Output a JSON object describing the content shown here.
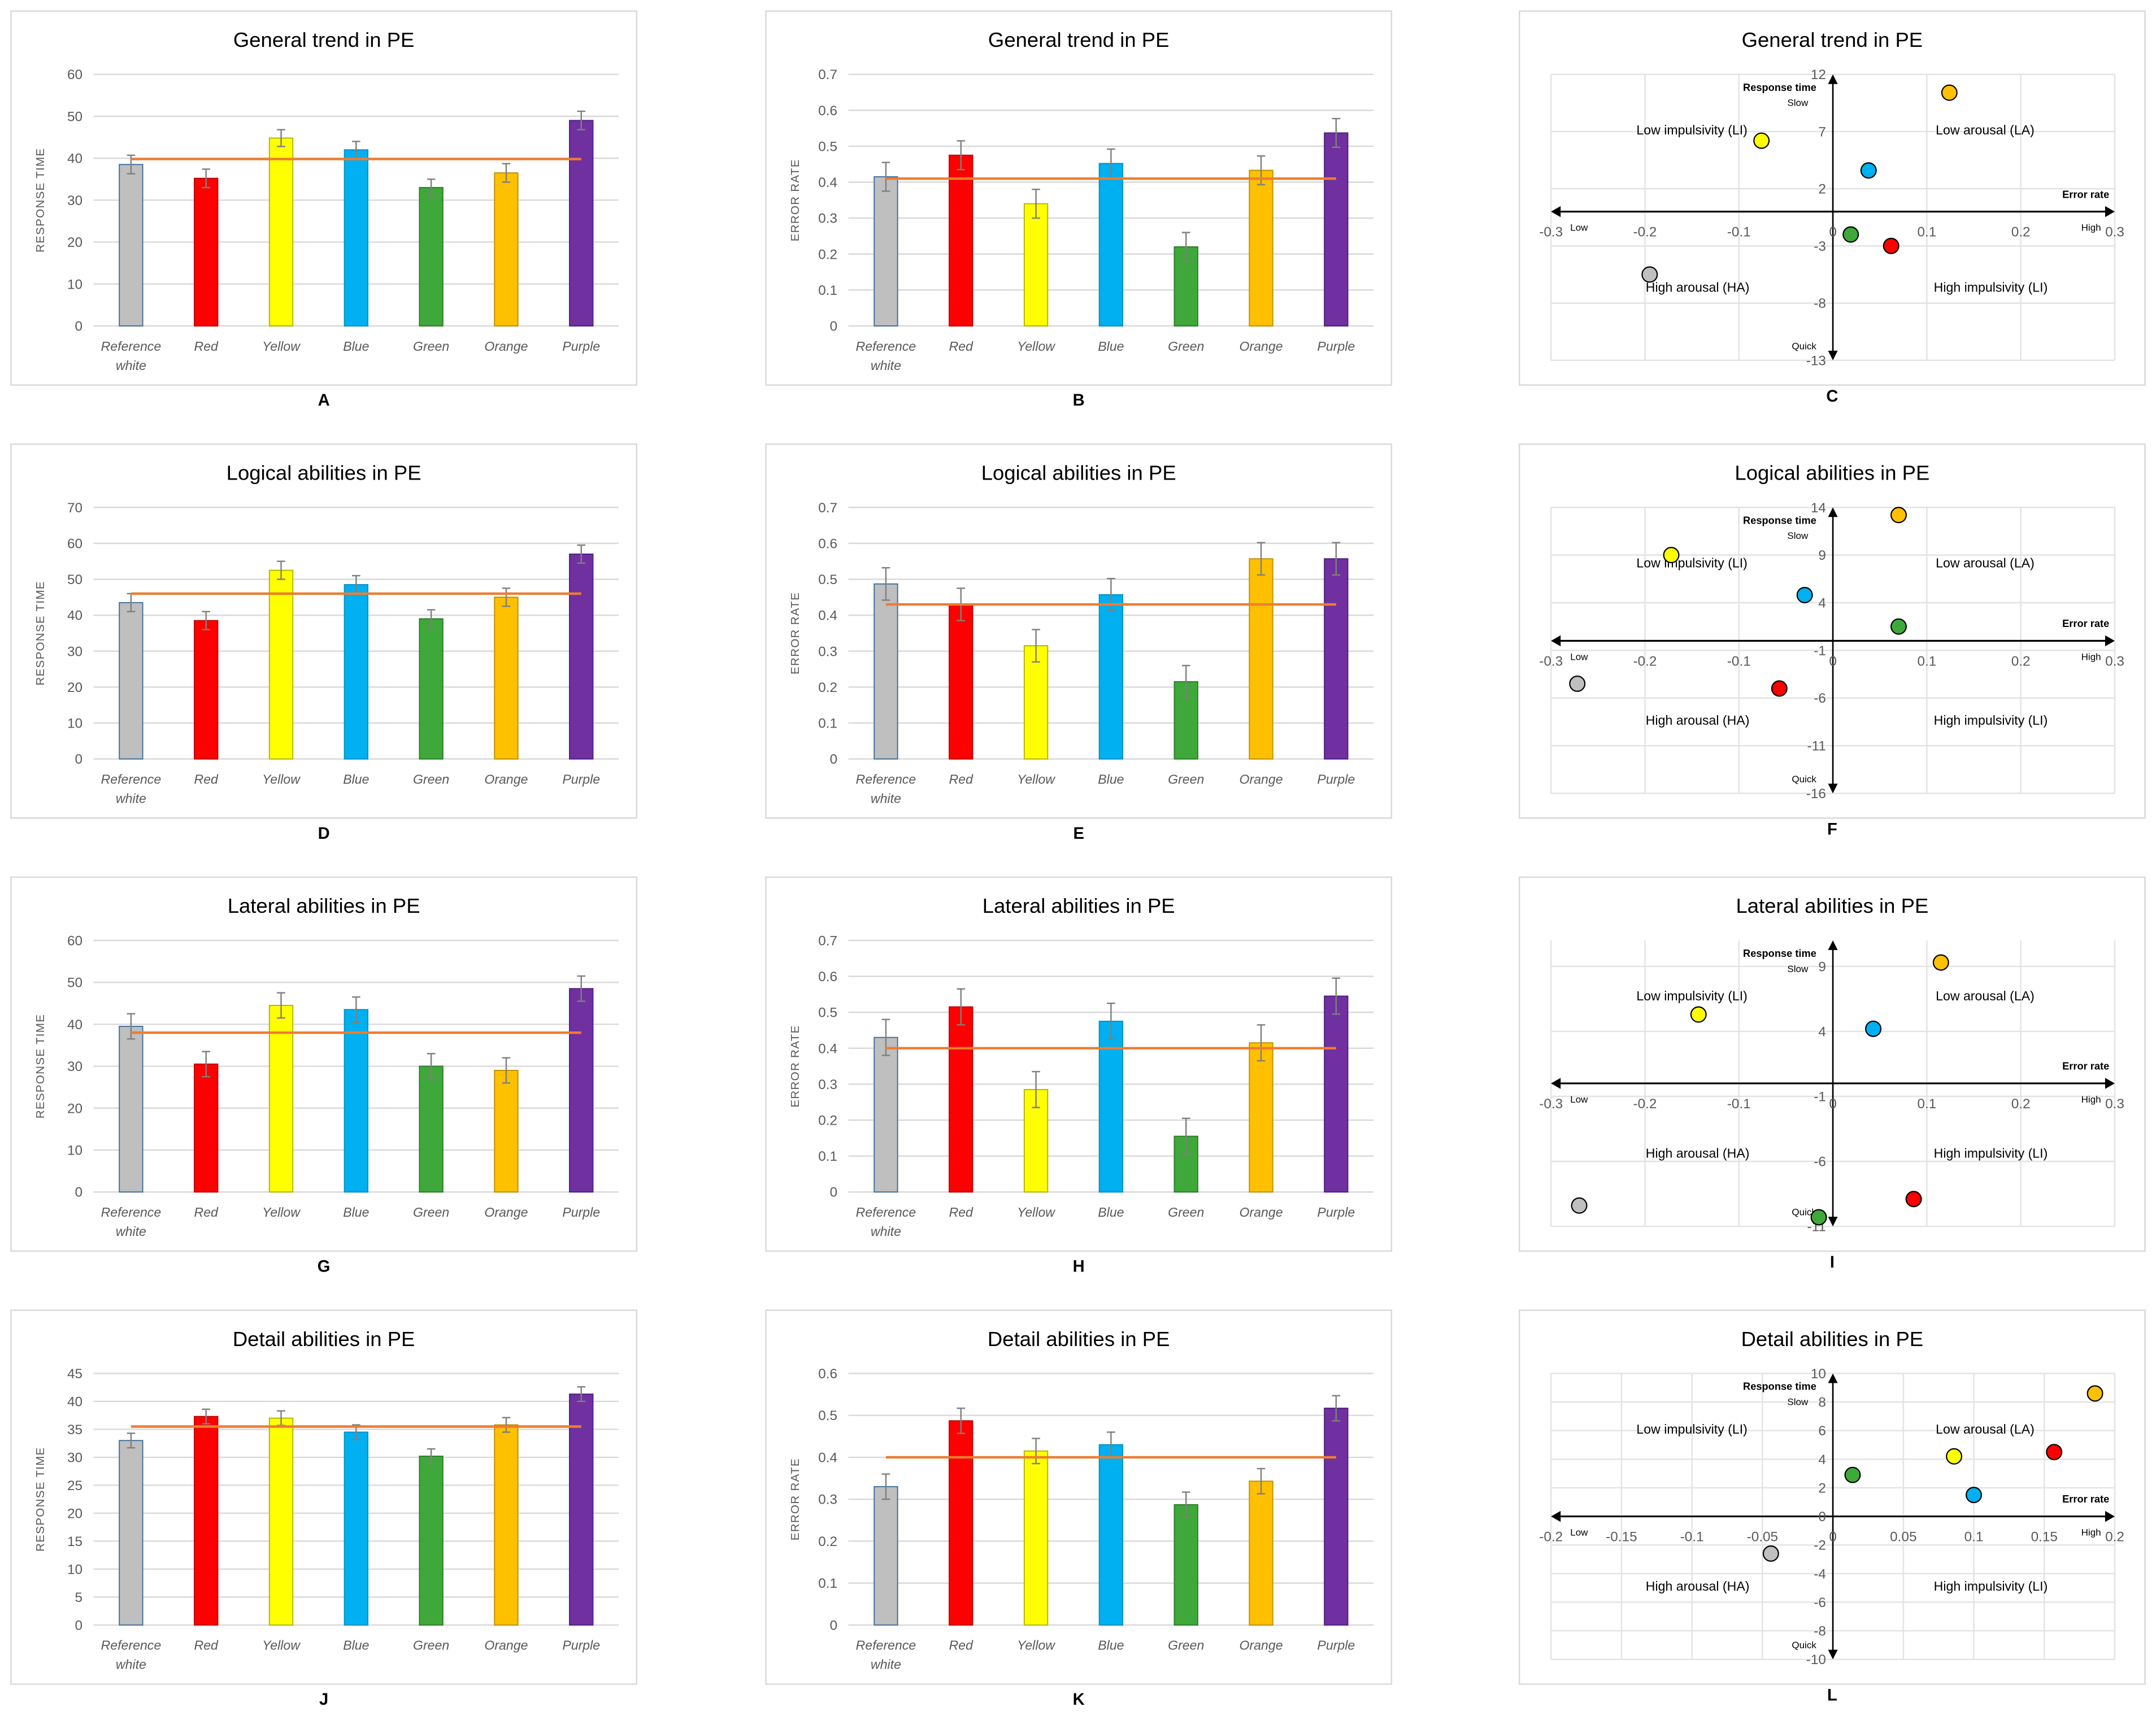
{
  "categories": [
    [
      "Reference",
      "white"
    ],
    [
      "Red"
    ],
    [
      "Yellow"
    ],
    [
      "Blue"
    ],
    [
      "Green"
    ],
    [
      "Orange"
    ],
    [
      "Purple"
    ]
  ],
  "colors": [
    "#bfbfbf",
    "#ff0000",
    "#ffff00",
    "#00b0f0",
    "#3fa83a",
    "#ffc000",
    "#7030a0"
  ],
  "stroke_colors": [
    "#41719c",
    "#c00000",
    "#b5b500",
    "#0090c8",
    "#2e7d2a",
    "#c09000",
    "#502080"
  ],
  "mean_line_color": "#ed7d31",
  "scatter_labels": {
    "quadrants": [
      "Low impulsivity (LI)",
      "Low arousal (LA)",
      "High arousal (HA)",
      "High impulsivity (LI)"
    ],
    "y_axis": "Response time",
    "y_high": "Slow",
    "y_low": "Quick",
    "x_axis": "Error rate",
    "x_low": "Low",
    "x_high": "High"
  },
  "chart_data": [
    {
      "letter": "A",
      "type": "bar",
      "title": "General trend in PE",
      "ylabel": "RESPONSE TIME",
      "ylim": [
        0,
        60
      ],
      "ystep": 10,
      "values": [
        38.5,
        35.2,
        44.8,
        42.0,
        33.0,
        36.5,
        49.0
      ],
      "errors": [
        2.2,
        2.2,
        2.0,
        2.0,
        2.0,
        2.2,
        2.2
      ],
      "mean": 39.8
    },
    {
      "letter": "B",
      "type": "bar",
      "title": "General trend in PE",
      "ylabel": "ERROR RATE",
      "ylim": [
        0,
        0.7
      ],
      "ystep": 0.1,
      "values": [
        0.415,
        0.475,
        0.34,
        0.452,
        0.22,
        0.433,
        0.537
      ],
      "errors": [
        0.04,
        0.04,
        0.04,
        0.04,
        0.04,
        0.04,
        0.04
      ],
      "mean": 0.41
    },
    {
      "letter": "C",
      "type": "scatter",
      "title": "General trend in PE",
      "xlim": [
        -0.3,
        0.3
      ],
      "xticks": [
        -0.3,
        -0.2,
        -0.1,
        0,
        0.1,
        0.2,
        0.3
      ],
      "ylim": [
        -13,
        12
      ],
      "yticks": [
        12,
        7,
        2,
        -3,
        -8,
        -13
      ],
      "points": [
        [
          -0.195,
          -5.5
        ],
        [
          0.062,
          -3.0
        ],
        [
          -0.076,
          6.2
        ],
        [
          0.038,
          3.6
        ],
        [
          0.019,
          -2.0
        ],
        [
          0.124,
          10.4
        ]
      ]
    },
    {
      "letter": "D",
      "type": "bar",
      "title": "Logical abilities in PE",
      "ylabel": "RESPONSE TIME",
      "ylim": [
        0,
        70
      ],
      "ystep": 10,
      "values": [
        43.5,
        38.5,
        52.5,
        48.5,
        39.0,
        45.0,
        57.0
      ],
      "errors": [
        2.5,
        2.5,
        2.5,
        2.5,
        2.5,
        2.5,
        2.5
      ],
      "mean": 46.0
    },
    {
      "letter": "E",
      "type": "bar",
      "title": "Logical abilities in PE",
      "ylabel": "ERROR RATE",
      "ylim": [
        0,
        0.7
      ],
      "ystep": 0.1,
      "values": [
        0.487,
        0.43,
        0.315,
        0.457,
        0.215,
        0.557,
        0.557
      ],
      "errors": [
        0.045,
        0.045,
        0.045,
        0.045,
        0.045,
        0.045,
        0.045
      ],
      "mean": 0.43
    },
    {
      "letter": "F",
      "type": "scatter",
      "title": "Logical abilities in PE",
      "xlim": [
        -0.3,
        0.3
      ],
      "xticks": [
        -0.3,
        -0.2,
        -0.1,
        0,
        0.1,
        0.2,
        0.3
      ],
      "ylim": [
        -16,
        14
      ],
      "yticks": [
        14,
        9,
        4,
        -1,
        -6,
        -11,
        -16
      ],
      "points": [
        [
          -0.272,
          -4.5
        ],
        [
          -0.057,
          -5.0
        ],
        [
          -0.172,
          9.0
        ],
        [
          -0.03,
          4.8
        ],
        [
          0.07,
          1.5
        ],
        [
          0.07,
          13.2
        ]
      ]
    },
    {
      "letter": "G",
      "type": "bar",
      "title": "Lateral abilities in PE",
      "ylabel": "RESPONSE TIME",
      "ylim": [
        0,
        60
      ],
      "ystep": 10,
      "values": [
        39.5,
        30.5,
        44.5,
        43.5,
        30.0,
        29.0,
        48.5
      ],
      "errors": [
        3.0,
        3.0,
        3.0,
        3.0,
        3.0,
        3.0,
        3.0
      ],
      "mean": 38.0
    },
    {
      "letter": "H",
      "type": "bar",
      "title": "Lateral abilities in PE",
      "ylabel": "ERROR RATE",
      "ylim": [
        0,
        0.7
      ],
      "ystep": 0.1,
      "values": [
        0.43,
        0.515,
        0.285,
        0.475,
        0.155,
        0.415,
        0.545
      ],
      "errors": [
        0.05,
        0.05,
        0.05,
        0.05,
        0.05,
        0.05,
        0.05
      ],
      "mean": 0.4
    },
    {
      "letter": "I",
      "type": "scatter",
      "title": "Lateral abilities in PE",
      "xlim": [
        -0.3,
        0.3
      ],
      "xticks": [
        -0.3,
        -0.2,
        -0.1,
        0,
        0.1,
        0.2,
        0.3
      ],
      "ylim": [
        -11,
        11
      ],
      "yticks": [
        9,
        4,
        -1,
        -6,
        -11
      ],
      "points": [
        [
          -0.27,
          -9.4
        ],
        [
          0.086,
          -8.9
        ],
        [
          -0.143,
          5.3
        ],
        [
          0.043,
          4.2
        ],
        [
          -0.015,
          -10.3
        ],
        [
          0.115,
          9.3
        ]
      ]
    },
    {
      "letter": "J",
      "type": "bar",
      "title": "Detail abilities in PE",
      "ylabel": "RESPONSE TIME",
      "ylim": [
        0,
        45
      ],
      "ystep": 5,
      "values": [
        33.0,
        37.3,
        37.0,
        34.5,
        30.2,
        35.8,
        41.3
      ],
      "errors": [
        1.3,
        1.3,
        1.3,
        1.3,
        1.3,
        1.3,
        1.3
      ],
      "mean": 35.5
    },
    {
      "letter": "K",
      "type": "bar",
      "title": "Detail abilities in PE",
      "ylabel": "ERROR RATE",
      "ylim": [
        0,
        0.6
      ],
      "ystep": 0.1,
      "values": [
        0.33,
        0.487,
        0.415,
        0.43,
        0.287,
        0.343,
        0.517
      ],
      "errors": [
        0.03,
        0.03,
        0.03,
        0.03,
        0.03,
        0.03,
        0.03
      ],
      "mean": 0.4
    },
    {
      "letter": "L",
      "type": "scatter",
      "title": "Detail abilities in PE",
      "xlim": [
        -0.2,
        0.2
      ],
      "xticks": [
        -0.2,
        -0.15,
        -0.1,
        -0.05,
        0,
        0.05,
        0.1,
        0.15,
        0.2
      ],
      "ylim": [
        -10,
        10
      ],
      "yticks": [
        10,
        8,
        6,
        4,
        2,
        0,
        -2,
        -4,
        -6,
        -8,
        -10
      ],
      "points": [
        [
          -0.044,
          -2.6
        ],
        [
          0.157,
          4.5
        ],
        [
          0.086,
          4.2
        ],
        [
          0.1,
          1.5
        ],
        [
          0.014,
          2.9
        ],
        [
          0.186,
          8.6
        ]
      ]
    }
  ]
}
